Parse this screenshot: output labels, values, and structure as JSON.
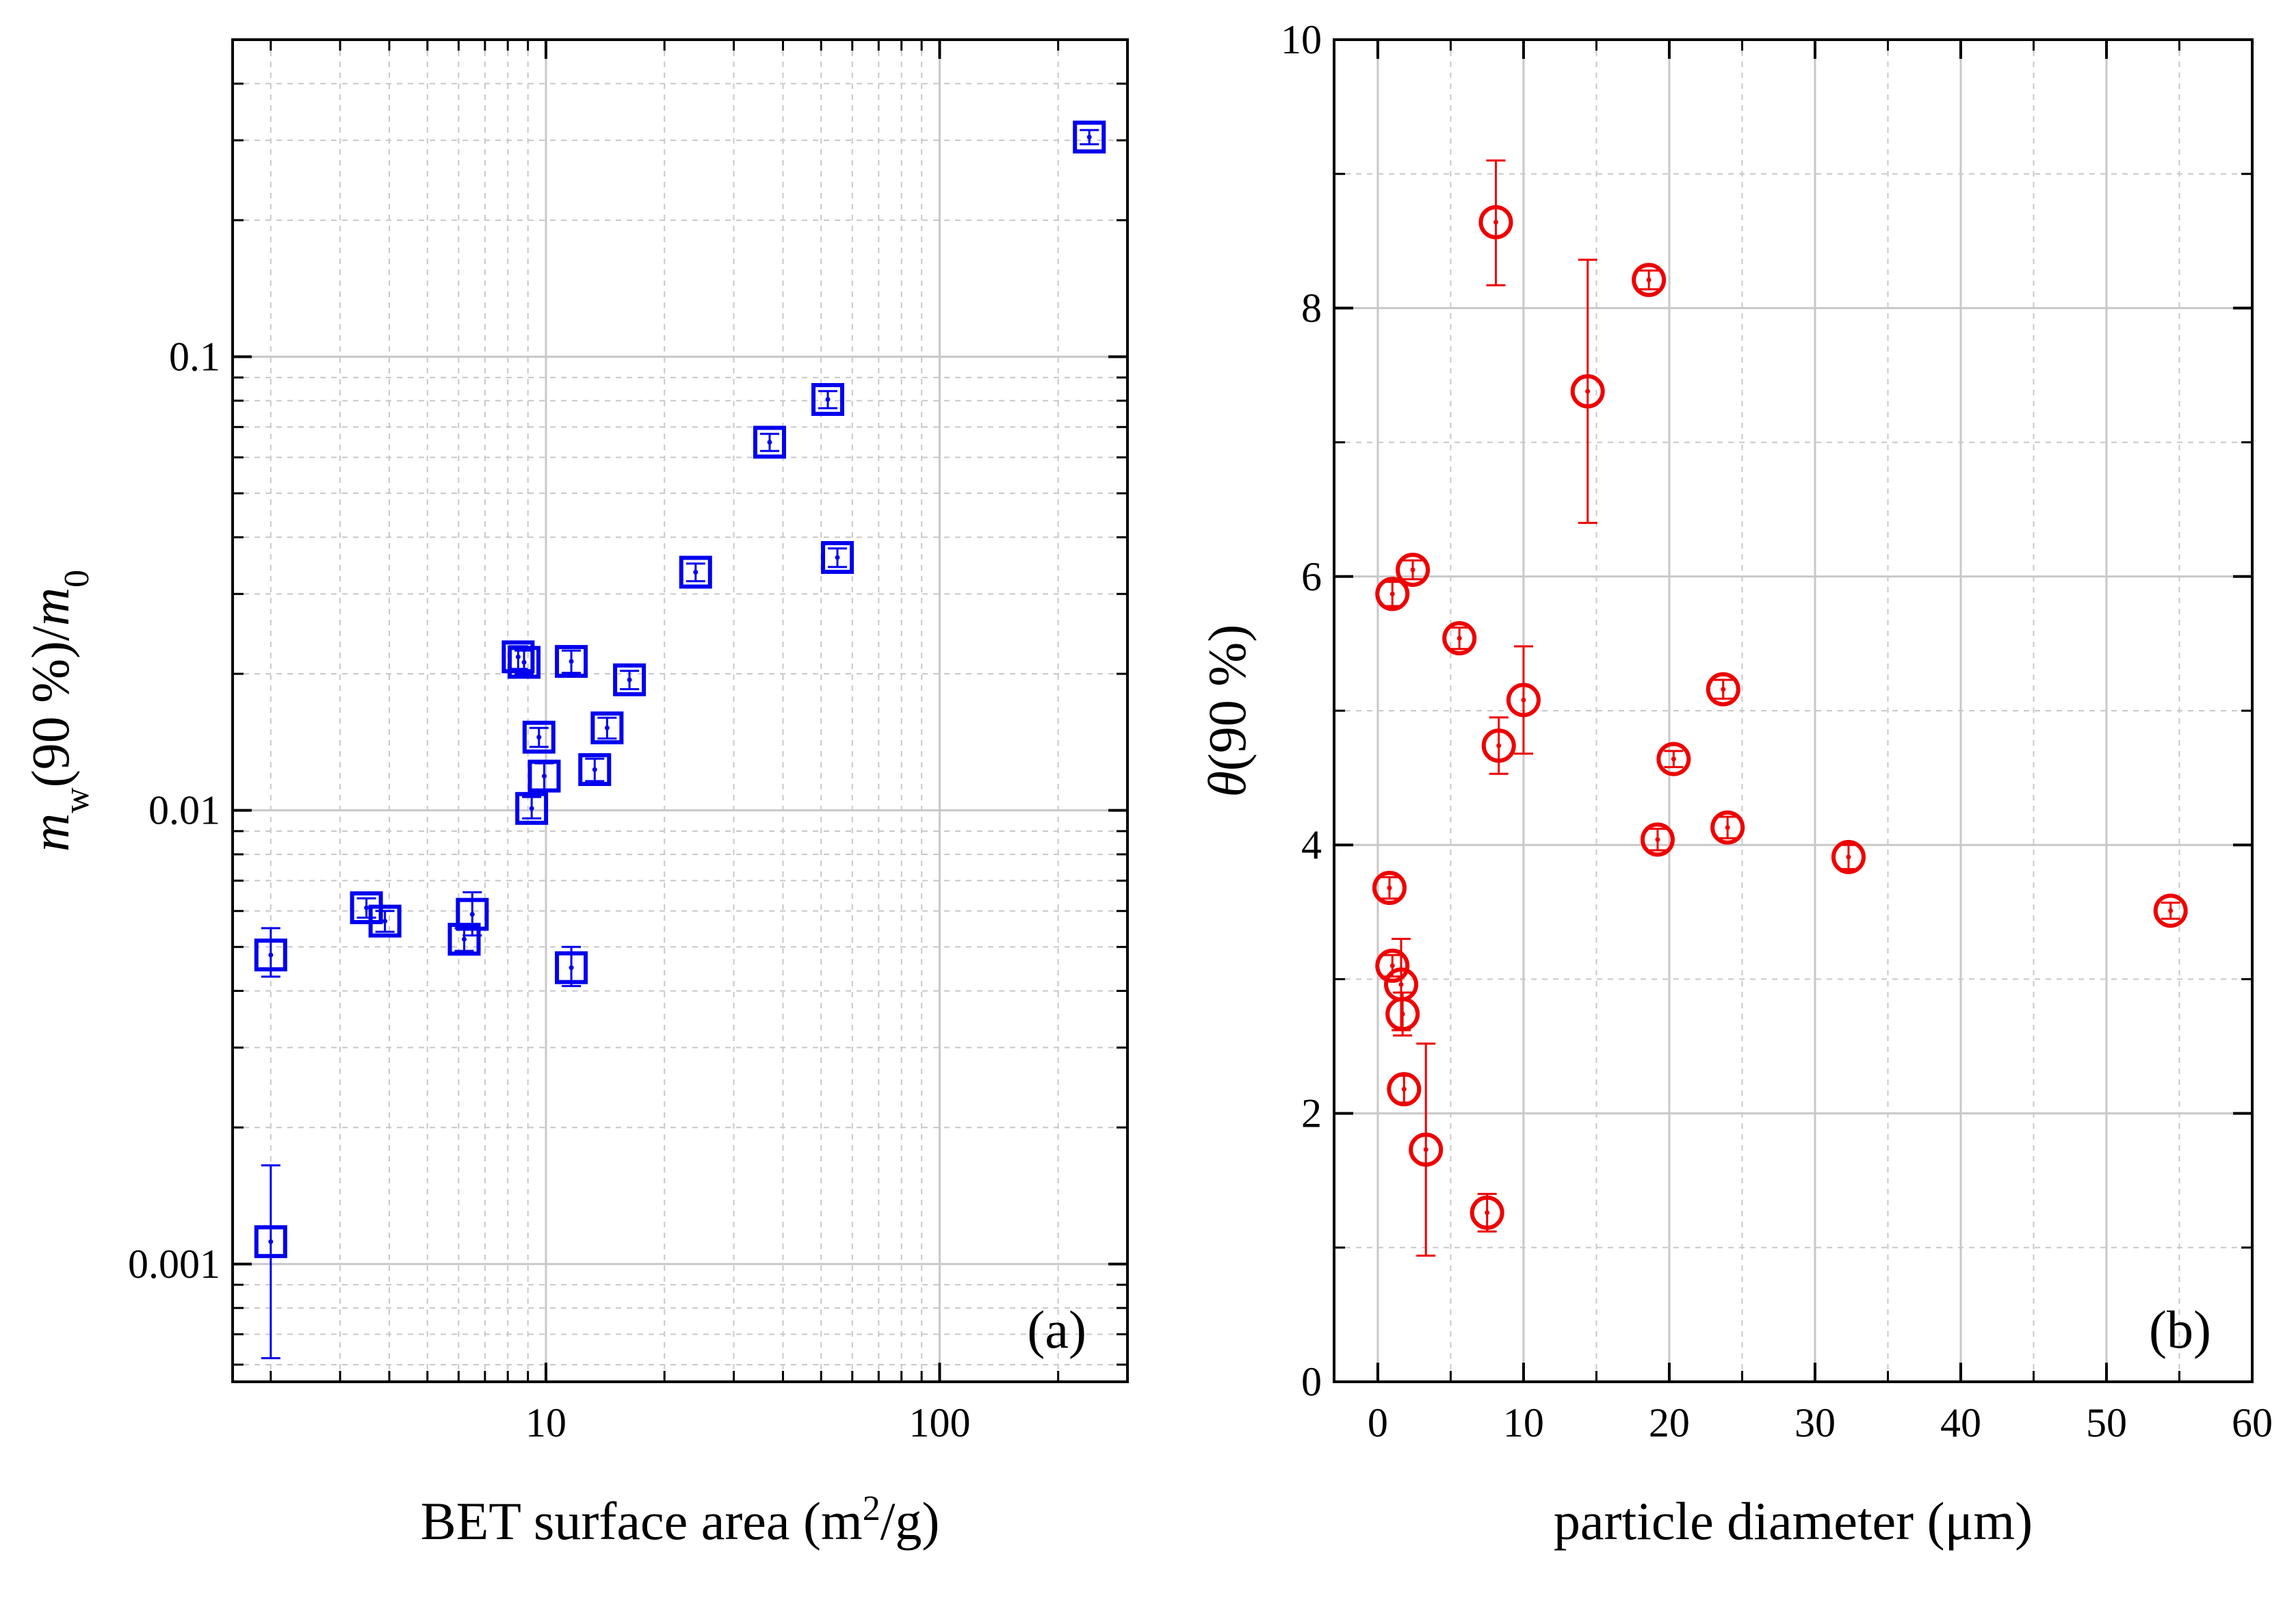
{
  "colors": {
    "panel_a": "#0000ee",
    "panel_b": "#ee0000",
    "grid": "#c8c8c8",
    "axis": "#000000"
  },
  "chart_data": [
    {
      "type": "scatter",
      "panel_label": "(a)",
      "xlabel": "BET surface area (m²/g)",
      "ylabel": "m_w(90 %)/m_0",
      "xscale": "log",
      "yscale": "log",
      "xlim": [
        1.6,
        300
      ],
      "ylim": [
        0.00055,
        0.5
      ],
      "xticks": [
        10,
        100
      ],
      "xtick_labels": [
        "10",
        "100"
      ],
      "yticks": [
        0.001,
        0.01,
        0.1
      ],
      "ytick_labels": [
        "0.001",
        "0.01",
        "0.1"
      ],
      "grid": true,
      "marker": "square-with-dot",
      "color": "#0000ee",
      "series": [
        {
          "points": [
            {
              "x": 2.0,
              "y": 0.0048,
              "ylo": 0.0043,
              "yhi": 0.0055
            },
            {
              "x": 2.0,
              "y": 0.00112,
              "ylo": 0.00062,
              "yhi": 0.00165
            },
            {
              "x": 3.5,
              "y": 0.0061,
              "ylo": 0.0058,
              "yhi": 0.0064
            },
            {
              "x": 3.9,
              "y": 0.0057,
              "ylo": 0.0054,
              "yhi": 0.006
            },
            {
              "x": 6.2,
              "y": 0.0052,
              "ylo": 0.0049,
              "yhi": 0.0055
            },
            {
              "x": 6.5,
              "y": 0.0059,
              "ylo": 0.0053,
              "yhi": 0.0066
            },
            {
              "x": 8.5,
              "y": 0.0218,
              "ylo": 0.0205,
              "yhi": 0.023
            },
            {
              "x": 8.8,
              "y": 0.0212,
              "ylo": 0.02,
              "yhi": 0.0225
            },
            {
              "x": 9.2,
              "y": 0.0101,
              "ylo": 0.0096,
              "yhi": 0.0107
            },
            {
              "x": 9.6,
              "y": 0.0145,
              "ylo": 0.0138,
              "yhi": 0.0152
            },
            {
              "x": 9.9,
              "y": 0.0119,
              "ylo": 0.0111,
              "yhi": 0.0127
            },
            {
              "x": 11.6,
              "y": 0.0213,
              "ylo": 0.0201,
              "yhi": 0.0225
            },
            {
              "x": 11.6,
              "y": 0.0045,
              "ylo": 0.0041,
              "yhi": 0.005
            },
            {
              "x": 13.3,
              "y": 0.0123,
              "ylo": 0.0116,
              "yhi": 0.013
            },
            {
              "x": 14.3,
              "y": 0.0152,
              "ylo": 0.0144,
              "yhi": 0.016
            },
            {
              "x": 16.3,
              "y": 0.0194,
              "ylo": 0.0185,
              "yhi": 0.0203
            },
            {
              "x": 24,
              "y": 0.0335,
              "ylo": 0.032,
              "yhi": 0.035
            },
            {
              "x": 37,
              "y": 0.0648,
              "ylo": 0.062,
              "yhi": 0.0676
            },
            {
              "x": 52,
              "y": 0.0805,
              "ylo": 0.077,
              "yhi": 0.084
            },
            {
              "x": 55,
              "y": 0.0361,
              "ylo": 0.0344,
              "yhi": 0.0378
            },
            {
              "x": 240,
              "y": 0.305,
              "ylo": 0.294,
              "yhi": 0.316
            }
          ]
        }
      ]
    },
    {
      "type": "scatter",
      "panel_label": "(b)",
      "xlabel": "particle diameter (μm)",
      "ylabel": "θ(90 %)",
      "xscale": "linear",
      "yscale": "linear",
      "xlim": [
        -3,
        60
      ],
      "ylim": [
        0,
        10
      ],
      "xticks": [
        0,
        10,
        20,
        30,
        40,
        50,
        60
      ],
      "xtick_labels": [
        "0",
        "10",
        "20",
        "30",
        "40",
        "50",
        "60"
      ],
      "yticks": [
        0,
        2,
        4,
        6,
        8,
        10
      ],
      "ytick_labels": [
        "0",
        "2",
        "4",
        "6",
        "8",
        "10"
      ],
      "grid": true,
      "marker": "circle-with-dot",
      "color": "#ee0000",
      "series": [
        {
          "points": [
            {
              "x": 0.8,
              "y": 3.68,
              "ylo": 3.6,
              "yhi": 3.76
            },
            {
              "x": 1.0,
              "y": 5.87,
              "ylo": 5.78,
              "yhi": 5.96
            },
            {
              "x": 1.0,
              "y": 3.1,
              "ylo": 3.02,
              "yhi": 3.18
            },
            {
              "x": 1.6,
              "y": 2.96,
              "ylo": 2.62,
              "yhi": 3.3
            },
            {
              "x": 1.7,
              "y": 2.74,
              "ylo": 2.58,
              "yhi": 2.9
            },
            {
              "x": 1.8,
              "y": 2.18,
              "ylo": 2.08,
              "yhi": 2.28
            },
            {
              "x": 2.4,
              "y": 6.05,
              "ylo": 5.98,
              "yhi": 6.12
            },
            {
              "x": 3.3,
              "y": 1.73,
              "ylo": 0.94,
              "yhi": 2.52
            },
            {
              "x": 5.6,
              "y": 5.54,
              "ylo": 5.46,
              "yhi": 5.62
            },
            {
              "x": 7.5,
              "y": 1.26,
              "ylo": 1.12,
              "yhi": 1.4
            },
            {
              "x": 8.1,
              "y": 8.64,
              "ylo": 8.17,
              "yhi": 9.1
            },
            {
              "x": 8.3,
              "y": 4.74,
              "ylo": 4.53,
              "yhi": 4.95
            },
            {
              "x": 10.0,
              "y": 5.08,
              "ylo": 4.68,
              "yhi": 5.48
            },
            {
              "x": 14.4,
              "y": 7.38,
              "ylo": 6.4,
              "yhi": 8.36
            },
            {
              "x": 18.6,
              "y": 8.21,
              "ylo": 8.14,
              "yhi": 8.28
            },
            {
              "x": 19.2,
              "y": 4.04,
              "ylo": 3.96,
              "yhi": 4.12
            },
            {
              "x": 20.3,
              "y": 4.64,
              "ylo": 4.58,
              "yhi": 4.7
            },
            {
              "x": 23.7,
              "y": 5.16,
              "ylo": 5.09,
              "yhi": 5.23
            },
            {
              "x": 24.0,
              "y": 4.13,
              "ylo": 4.05,
              "yhi": 4.21
            },
            {
              "x": 32.3,
              "y": 3.91,
              "ylo": 3.82,
              "yhi": 4.0
            },
            {
              "x": 54.4,
              "y": 3.51,
              "ylo": 3.45,
              "yhi": 3.57
            }
          ]
        }
      ]
    }
  ]
}
